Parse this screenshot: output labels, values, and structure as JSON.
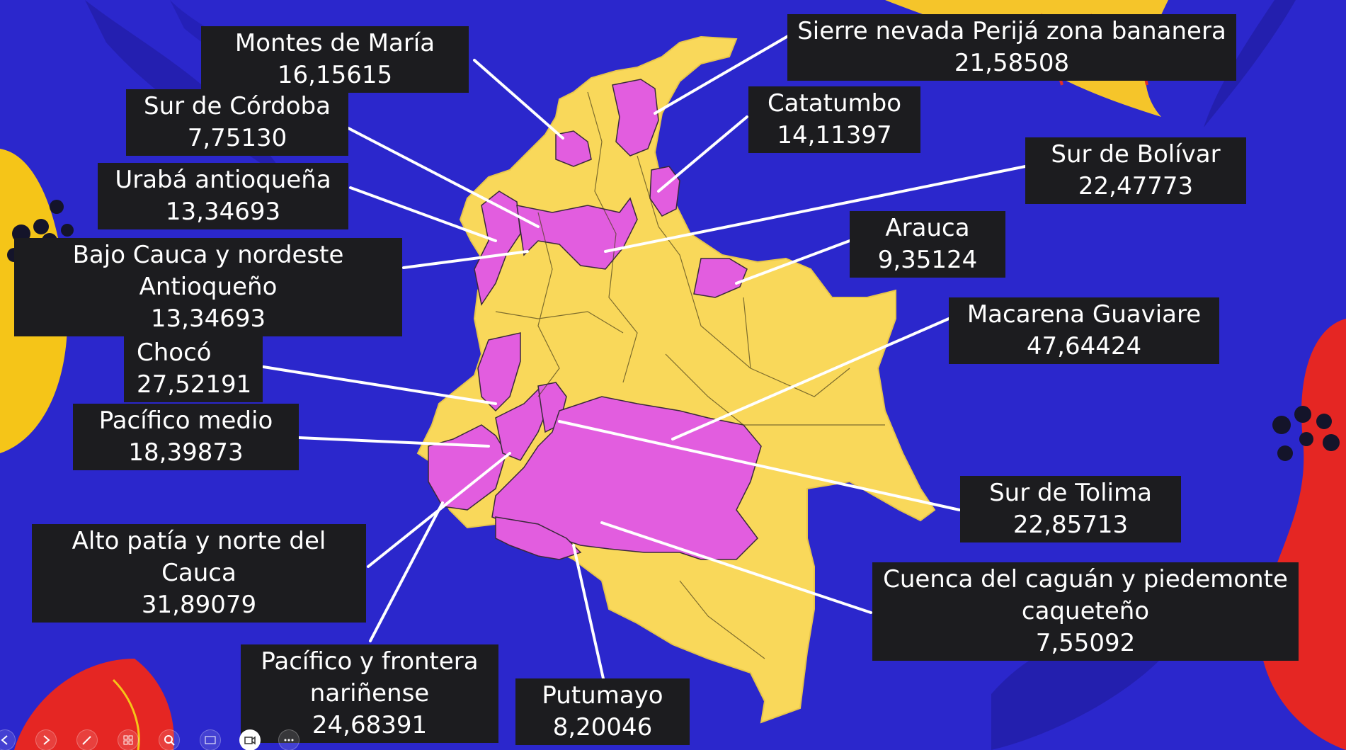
{
  "slide": {
    "background_color": "#2b27cc",
    "map_colors": {
      "base": "#f9d85a",
      "highlight": "#e25ddf",
      "border": "#3a3a1a"
    },
    "regions": [
      {
        "name": "Montes de María",
        "value": "16,15615"
      },
      {
        "name": "Sierre nevada Perijá zona bananera",
        "value": "21,58508"
      },
      {
        "name": "Sur de Córdoba",
        "value": "7,75130"
      },
      {
        "name": "Catatumbo",
        "value": "14,11397"
      },
      {
        "name": "Urabá antioqueña",
        "value": "13,34693"
      },
      {
        "name": "Sur de Bolívar",
        "value": "22,47773"
      },
      {
        "name": "Bajo Cauca y nordeste",
        "name2": "Antioqueño",
        "value": "13,34693"
      },
      {
        "name": "Arauca",
        "value": "9,35124"
      },
      {
        "name": "Chocó",
        "value": "27,52191"
      },
      {
        "name": "Macarena Guaviare",
        "value": "47,64424"
      },
      {
        "name": "Pacífico medio",
        "value": "18,39873"
      },
      {
        "name": "Sur de Tolima",
        "value": "22,85713"
      },
      {
        "name": "Alto patía y norte del",
        "name2": "Cauca",
        "value": "31,89079"
      },
      {
        "name": "Cuenca del caguán y piedemonte",
        "name2": "caqueteño",
        "value": "7,55092"
      },
      {
        "name": "Pacífico y frontera",
        "name2": "nariñense",
        "value": "24,68391"
      },
      {
        "name": "Putumayo",
        "value": "8,20046"
      }
    ]
  },
  "toolbar": {
    "buttons": [
      "previous-icon",
      "next-icon",
      "pen-icon",
      "slides-grid-icon",
      "zoom-icon",
      "subtitles-icon",
      "camera-icon",
      "more-icon"
    ]
  }
}
